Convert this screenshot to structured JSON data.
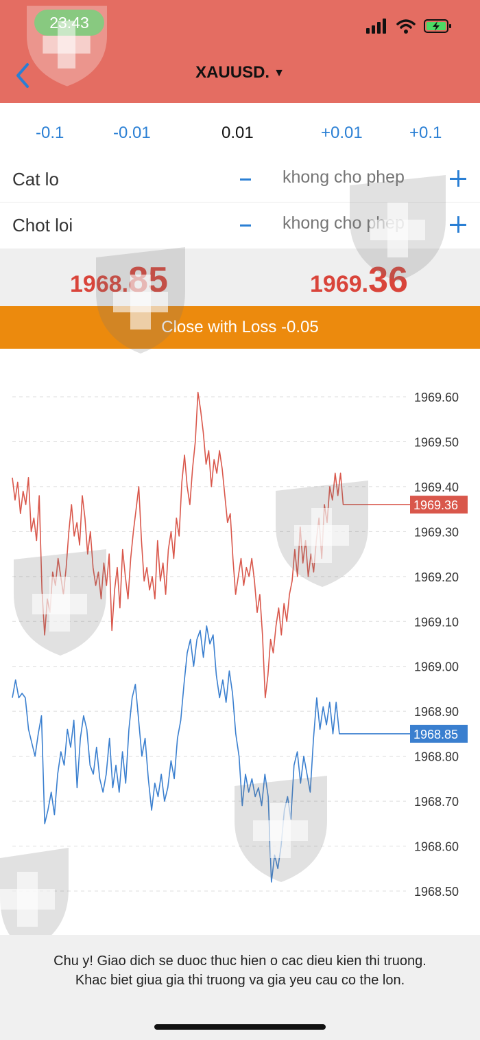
{
  "status_bar": {
    "time": "23:43",
    "icons": [
      "signal-icon",
      "wifi-icon",
      "battery-charging-icon"
    ]
  },
  "header": {
    "title": "XAUUSD.",
    "title_caret": "▼",
    "back_icon": "chevron-left-icon"
  },
  "volume": {
    "buttons": [
      "-0.1",
      "-0.01",
      "0.01",
      "+0.01",
      "+0.1"
    ]
  },
  "stop_loss": {
    "label": "Cat lo",
    "placeholder": "khong cho phep"
  },
  "take_profit": {
    "label": "Chot loi",
    "placeholder": "khong cho phep"
  },
  "prices": {
    "bid_small": "1968.",
    "bid_big": "85",
    "ask_small": "1969.",
    "ask_big": "36"
  },
  "close_button": {
    "label": "Close with Loss -0.05"
  },
  "chart_data": {
    "type": "line",
    "y_ticks": [
      "1969.60",
      "1969.50",
      "1969.40",
      "1969.30",
      "1969.20",
      "1969.10",
      "1969.00",
      "1968.90",
      "1968.80",
      "1968.70",
      "1968.60",
      "1968.50"
    ],
    "ylim": [
      1968.45,
      1969.65
    ],
    "grid": true,
    "series": [
      {
        "color": "#d9574b",
        "current_label": "1969.36",
        "current_value": 1969.36,
        "values": [
          1969.42,
          1969.37,
          1969.41,
          1969.34,
          1969.39,
          1969.36,
          1969.42,
          1969.3,
          1969.33,
          1969.28,
          1969.38,
          1969.17,
          1969.07,
          1969.15,
          1969.12,
          1969.21,
          1969.18,
          1969.24,
          1969.2,
          1969.16,
          1969.22,
          1969.3,
          1969.36,
          1969.29,
          1969.32,
          1969.27,
          1969.38,
          1969.33,
          1969.25,
          1969.3,
          1969.22,
          1969.18,
          1969.21,
          1969.15,
          1969.23,
          1969.18,
          1969.25,
          1969.08,
          1969.17,
          1969.22,
          1969.13,
          1969.26,
          1969.2,
          1969.15,
          1969.24,
          1969.3,
          1969.35,
          1969.4,
          1969.28,
          1969.19,
          1969.22,
          1969.17,
          1969.2,
          1969.15,
          1969.28,
          1969.19,
          1969.23,
          1969.16,
          1969.26,
          1969.3,
          1969.24,
          1969.33,
          1969.29,
          1969.41,
          1969.47,
          1969.4,
          1969.36,
          1969.44,
          1969.5,
          1969.61,
          1969.57,
          1969.52,
          1969.45,
          1969.48,
          1969.4,
          1969.46,
          1969.43,
          1969.48,
          1969.44,
          1969.38,
          1969.32,
          1969.34,
          1969.24,
          1969.16,
          1969.2,
          1969.24,
          1969.18,
          1969.22,
          1969.2,
          1969.24,
          1969.19,
          1969.12,
          1969.16,
          1969.07,
          1968.93,
          1968.98,
          1969.06,
          1969.03,
          1969.09,
          1969.13,
          1969.07,
          1969.14,
          1969.1,
          1969.16,
          1969.19,
          1969.26,
          1969.2,
          1969.31,
          1969.23,
          1969.28,
          1969.2,
          1969.25,
          1969.21,
          1969.28,
          1969.33,
          1969.24,
          1969.36,
          1969.32,
          1969.4,
          1969.37,
          1969.43,
          1969.38,
          1969.43,
          1969.36,
          1969.36,
          1969.36,
          1969.36,
          1969.36,
          1969.36,
          1969.36,
          1969.36
        ]
      },
      {
        "color": "#3a7fcf",
        "current_label": "1968.85",
        "current_value": 1968.85,
        "values": [
          1968.93,
          1968.97,
          1968.93,
          1968.94,
          1968.93,
          1968.86,
          1968.83,
          1968.8,
          1968.85,
          1968.89,
          1968.65,
          1968.68,
          1968.72,
          1968.67,
          1968.76,
          1968.81,
          1968.78,
          1968.86,
          1968.82,
          1968.88,
          1968.73,
          1968.84,
          1968.89,
          1968.86,
          1968.78,
          1968.76,
          1968.82,
          1968.75,
          1968.72,
          1968.76,
          1968.84,
          1968.73,
          1968.78,
          1968.72,
          1968.81,
          1968.74,
          1968.86,
          1968.93,
          1968.96,
          1968.88,
          1968.8,
          1968.84,
          1968.75,
          1968.68,
          1968.74,
          1968.71,
          1968.76,
          1968.7,
          1968.73,
          1968.79,
          1968.75,
          1968.84,
          1968.88,
          1968.96,
          1969.03,
          1969.06,
          1969.0,
          1969.06,
          1969.08,
          1969.02,
          1969.09,
          1969.05,
          1969.07,
          1968.98,
          1968.93,
          1968.97,
          1968.92,
          1968.99,
          1968.94,
          1968.85,
          1968.8,
          1968.69,
          1968.76,
          1968.72,
          1968.75,
          1968.71,
          1968.73,
          1968.69,
          1968.76,
          1968.71,
          1968.52,
          1968.58,
          1968.55,
          1968.6,
          1968.68,
          1968.71,
          1968.66,
          1968.78,
          1968.81,
          1968.74,
          1968.8,
          1968.76,
          1968.72,
          1968.84,
          1968.93,
          1968.86,
          1968.91,
          1968.87,
          1968.92,
          1968.85,
          1968.92,
          1968.85,
          1968.85,
          1968.85,
          1968.85,
          1968.85,
          1968.85,
          1968.85,
          1968.85
        ]
      }
    ]
  },
  "footer": {
    "line1": "Chu y! Giao dich se duoc thuc hien o cac dieu kien thi truong.",
    "line2": "Khac biet giua gia thi truong va gia yeu cau co the lon."
  }
}
